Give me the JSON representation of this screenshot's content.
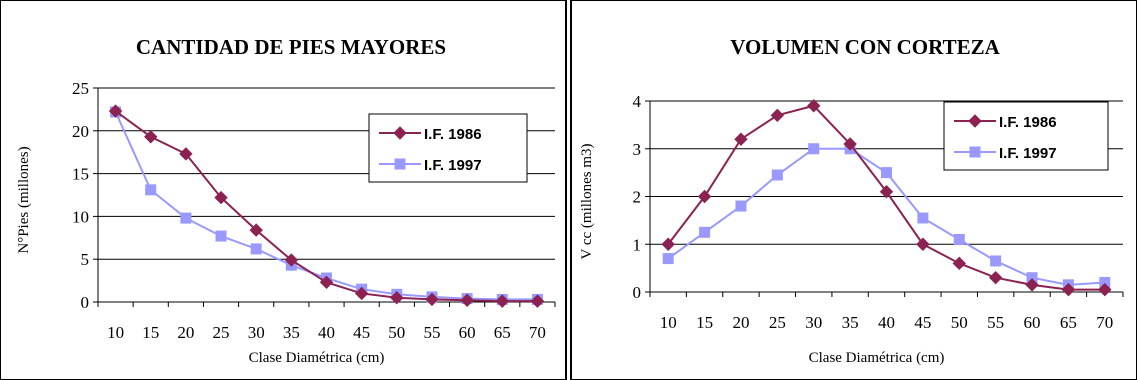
{
  "chart_data": [
    {
      "type": "line",
      "title": "CANTIDAD DE PIES MAYORES",
      "xlabel": "Clase Diamétrica (cm)",
      "ylabel": "N°Pies (millones)",
      "categories": [
        "10",
        "15",
        "20",
        "25",
        "30",
        "35",
        "40",
        "45",
        "50",
        "55",
        "60",
        "65",
        "70"
      ],
      "ylim": [
        0,
        25
      ],
      "yticks": [
        0,
        5,
        10,
        15,
        20,
        25
      ],
      "grid": true,
      "legend": "right",
      "series": [
        {
          "name": "I.F. 1986",
          "color": "#8B2252",
          "marker": "diamond",
          "values": [
            22.3,
            19.3,
            17.3,
            12.2,
            8.4,
            4.9,
            2.3,
            1.0,
            0.5,
            0.3,
            0.2,
            0.1,
            0.1
          ]
        },
        {
          "name": "I.F. 1997",
          "color": "#9999FF",
          "marker": "square",
          "values": [
            22.2,
            13.1,
            9.8,
            7.7,
            6.2,
            4.3,
            2.8,
            1.5,
            0.9,
            0.6,
            0.4,
            0.3,
            0.3
          ]
        }
      ]
    },
    {
      "type": "line",
      "title": "VOLUMEN CON CORTEZA",
      "xlabel": "Clase Diamétrica (cm)",
      "ylabel": "V cc (millones m3)",
      "categories": [
        "10",
        "15",
        "20",
        "25",
        "30",
        "35",
        "40",
        "45",
        "50",
        "55",
        "60",
        "65",
        "70"
      ],
      "ylim": [
        0,
        4
      ],
      "yticks": [
        0,
        1,
        2,
        3,
        4
      ],
      "grid": true,
      "legend": "top-right",
      "series": [
        {
          "name": "I.F. 1986",
          "color": "#8B2252",
          "marker": "diamond",
          "values": [
            1.0,
            2.0,
            3.2,
            3.7,
            3.9,
            3.1,
            2.1,
            1.0,
            0.6,
            0.3,
            0.15,
            0.05,
            0.05
          ]
        },
        {
          "name": "I.F. 1997",
          "color": "#9999FF",
          "marker": "square",
          "values": [
            0.7,
            1.25,
            1.8,
            2.45,
            3.0,
            3.0,
            2.5,
            1.55,
            1.1,
            0.65,
            0.3,
            0.15,
            0.2
          ]
        }
      ]
    }
  ]
}
